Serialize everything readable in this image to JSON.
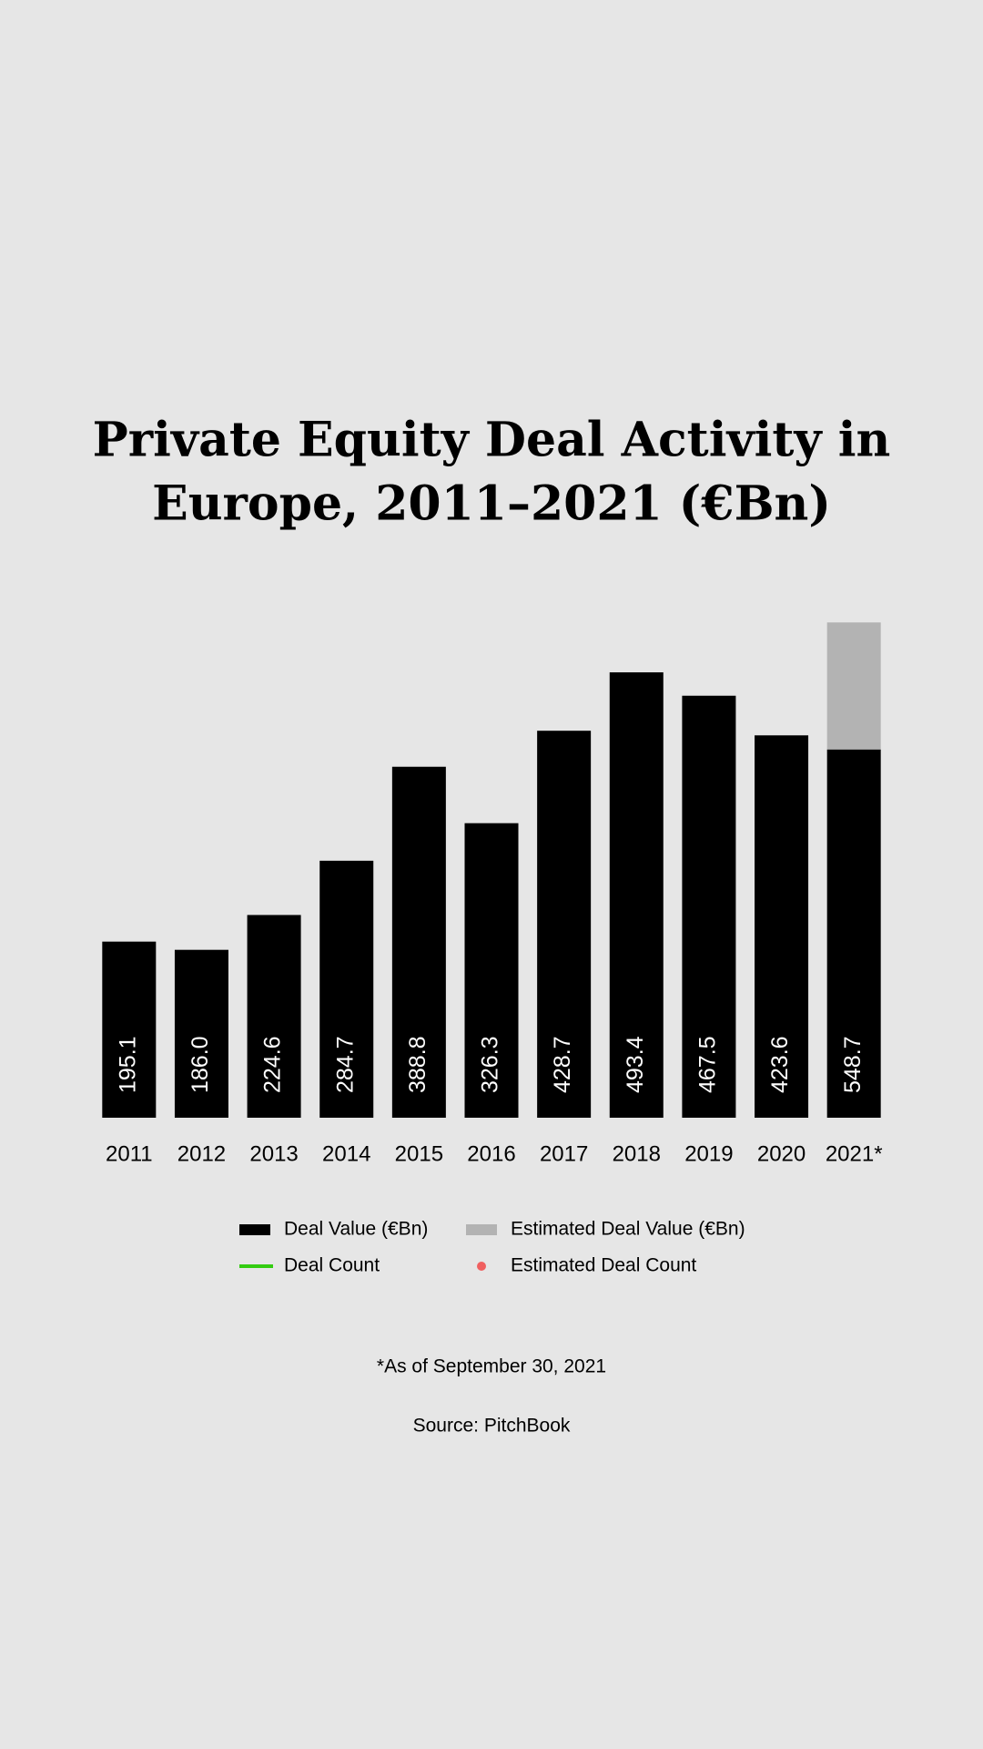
{
  "chart_data": {
    "type": "stacked_bar",
    "title": [
      "Private Equity Deal Activity in",
      "Europe, 2011–2021 (€Bn)"
    ],
    "categories": [
      "2011",
      "2012",
      "2013",
      "2014",
      "2015",
      "2016",
      "2017",
      "2018",
      "2019",
      "2020",
      "2021*"
    ],
    "series": [
      {
        "name": "Deal Value (€Bn)",
        "color": "#000000",
        "values": [
          195.1,
          186.0,
          224.6,
          284.7,
          388.8,
          326.3,
          428.7,
          493.4,
          467.5,
          423.6,
          408.0
        ]
      },
      {
        "name": "Estimated Deal Value (€Bn)",
        "color": "#b3b3b3",
        "values": [
          null,
          null,
          null,
          null,
          null,
          null,
          null,
          null,
          null,
          null,
          140.7
        ]
      }
    ],
    "bar_labels": [
      "195.1",
      "186.0",
      "224.6",
      "284.7",
      "388.8",
      "326.3",
      "428.7",
      "493.4",
      "467.5",
      "423.6",
      "548.7"
    ],
    "extra_legend": [
      {
        "name": "Deal Count",
        "color": "#33cc11",
        "marker": "line"
      },
      {
        "name": "Estimated Deal Count",
        "color": "#f06060",
        "marker": "dot"
      }
    ],
    "ylim": [
      0,
      550
    ],
    "footnote": "*As of September 30, 2021",
    "source": "Source: PitchBook"
  }
}
